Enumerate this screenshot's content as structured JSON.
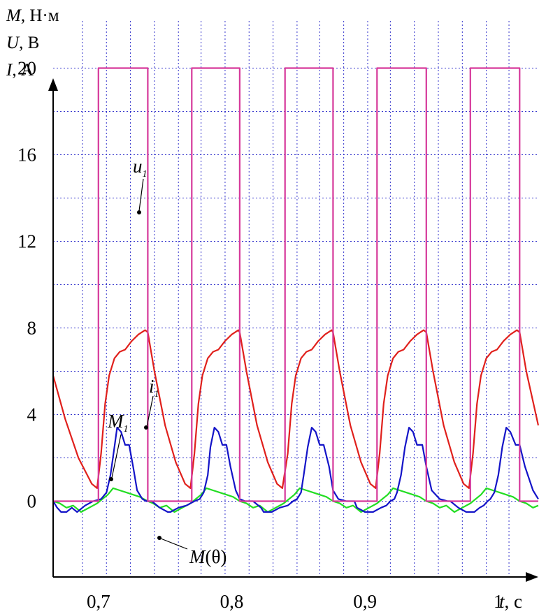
{
  "chart_data": {
    "type": "line",
    "y_axis_labels": [
      {
        "sym": "M",
        "unit": ", Н·м"
      },
      {
        "sym": "U",
        "unit": ", В"
      },
      {
        "sym": "I",
        "unit": ", А"
      }
    ],
    "x_axis_label": {
      "sym": "t",
      "unit": ", с"
    },
    "xlim": [
      0.666,
      1.03
    ],
    "ylim": [
      -3.5,
      22.5
    ],
    "x_grid": [
      0.688,
      0.706,
      0.724,
      0.742,
      0.76,
      0.777,
      0.795,
      0.813,
      0.831,
      0.849,
      0.866,
      0.884,
      0.902,
      0.919,
      0.937,
      0.955,
      0.973,
      0.991,
      1.008
    ],
    "y_grid": [
      0,
      2,
      4,
      6,
      8,
      10,
      12,
      14,
      16,
      18,
      20
    ],
    "x_ticks": [
      {
        "v": 0.7,
        "label": "0,7"
      },
      {
        "v": 0.8,
        "label": "0,8"
      },
      {
        "v": 0.9,
        "label": "0,9"
      },
      {
        "v": 1.0,
        "label": "1"
      }
    ],
    "y_ticks": [
      {
        "v": 0,
        "label": "0"
      },
      {
        "v": 4,
        "label": "4"
      },
      {
        "v": 8,
        "label": "8"
      },
      {
        "v": 12,
        "label": "12"
      },
      {
        "v": 16,
        "label": "16"
      },
      {
        "v": 20,
        "label": "20"
      }
    ],
    "grid": true,
    "colors": {
      "u1": "#d6399b",
      "i1": "#e0201c",
      "M1": "#1414c8",
      "Mtheta": "#22dd22",
      "grid": "#3333cc",
      "axis": "#000000"
    },
    "series": [
      {
        "id": "u1",
        "label": {
          "sym": "u",
          "sub": "1"
        },
        "x": [
          0.666,
          0.7,
          0.7,
          0.737,
          0.737,
          0.77,
          0.77,
          0.806,
          0.806,
          0.84,
          0.84,
          0.876,
          0.876,
          0.909,
          0.909,
          0.946,
          0.946,
          0.979,
          0.979,
          1.016,
          1.016,
          1.03
        ],
        "y": [
          0,
          0,
          20,
          20,
          0,
          0,
          20,
          20,
          0,
          0,
          20,
          20,
          0,
          0,
          20,
          20,
          0,
          0,
          20,
          20,
          0,
          0
        ]
      },
      {
        "id": "i1",
        "label": {
          "sym": "i",
          "sub": "1"
        },
        "x": [
          0.666,
          0.675,
          0.685,
          0.695,
          0.699,
          0.702,
          0.705,
          0.708,
          0.712,
          0.716,
          0.72,
          0.725,
          0.73,
          0.735,
          0.737,
          0.742,
          0.75,
          0.758,
          0.765,
          0.769,
          0.772,
          0.775,
          0.778,
          0.782,
          0.786,
          0.79,
          0.795,
          0.8,
          0.805,
          0.806,
          0.811,
          0.819,
          0.827,
          0.834,
          0.838,
          0.842,
          0.845,
          0.848,
          0.852,
          0.856,
          0.86,
          0.865,
          0.87,
          0.875,
          0.876,
          0.881,
          0.889,
          0.897,
          0.904,
          0.908,
          0.911,
          0.914,
          0.917,
          0.921,
          0.925,
          0.929,
          0.934,
          0.939,
          0.944,
          0.946,
          0.951,
          0.959,
          0.967,
          0.974,
          0.978,
          0.981,
          0.984,
          0.987,
          0.991,
          0.995,
          0.999,
          1.004,
          1.009,
          1.014,
          1.016,
          1.021,
          1.03
        ],
        "y": [
          5.8,
          3.8,
          2.0,
          0.8,
          0.6,
          2.2,
          4.5,
          5.8,
          6.6,
          6.9,
          7.0,
          7.4,
          7.7,
          7.9,
          7.8,
          6.0,
          3.5,
          1.8,
          0.8,
          0.6,
          2.2,
          4.5,
          5.8,
          6.6,
          6.9,
          7.0,
          7.4,
          7.7,
          7.9,
          7.8,
          6.0,
          3.5,
          1.8,
          0.8,
          0.6,
          2.2,
          4.5,
          5.8,
          6.6,
          6.9,
          7.0,
          7.4,
          7.7,
          7.9,
          7.8,
          6.0,
          3.5,
          1.8,
          0.8,
          0.6,
          2.2,
          4.5,
          5.8,
          6.6,
          6.9,
          7.0,
          7.4,
          7.7,
          7.9,
          7.8,
          6.0,
          3.5,
          1.8,
          0.8,
          0.6,
          2.2,
          4.5,
          5.8,
          6.6,
          6.9,
          7.0,
          7.4,
          7.7,
          7.9,
          7.8,
          6.0,
          3.5
        ]
      },
      {
        "id": "M1",
        "label": {
          "sym": "M",
          "sub": "1"
        },
        "x": [
          0.666,
          0.669,
          0.672,
          0.676,
          0.68,
          0.684,
          0.69,
          0.696,
          0.702,
          0.706,
          0.709,
          0.712,
          0.714,
          0.717,
          0.72,
          0.723,
          0.726,
          0.729,
          0.733,
          0.736,
          0.74,
          0.746,
          0.752,
          0.754,
          0.76,
          0.766,
          0.772,
          0.776,
          0.779,
          0.782,
          0.784,
          0.787,
          0.79,
          0.793,
          0.796,
          0.799,
          0.803,
          0.806,
          0.81,
          0.816,
          0.822,
          0.824,
          0.83,
          0.836,
          0.842,
          0.846,
          0.849,
          0.852,
          0.854,
          0.857,
          0.86,
          0.863,
          0.866,
          0.869,
          0.873,
          0.876,
          0.88,
          0.886,
          0.892,
          0.894,
          0.9,
          0.906,
          0.912,
          0.916,
          0.919,
          0.922,
          0.924,
          0.927,
          0.93,
          0.933,
          0.936,
          0.939,
          0.943,
          0.946,
          0.95,
          0.956,
          0.962,
          0.964,
          0.97,
          0.976,
          0.982,
          0.986,
          0.989,
          0.992,
          0.994,
          0.997,
          1.0,
          1.003,
          1.006,
          1.009,
          1.013,
          1.016,
          1.02,
          1.026,
          1.03
        ],
        "y": [
          0,
          -0.3,
          -0.5,
          -0.5,
          -0.3,
          -0.5,
          -0.2,
          0,
          0.1,
          0.4,
          1.2,
          2.5,
          3.4,
          3.2,
          2.6,
          2.6,
          1.6,
          0.5,
          0.1,
          0,
          0,
          -0.3,
          -0.5,
          -0.5,
          -0.3,
          -0.2,
          0,
          0.1,
          0.4,
          1.2,
          2.5,
          3.4,
          3.2,
          2.6,
          2.6,
          1.6,
          0.5,
          0.1,
          0,
          0,
          -0.3,
          -0.5,
          -0.5,
          -0.3,
          -0.2,
          0,
          0.1,
          0.4,
          1.2,
          2.5,
          3.4,
          3.2,
          2.6,
          2.6,
          1.6,
          0.5,
          0.1,
          0,
          0,
          -0.3,
          -0.5,
          -0.5,
          -0.3,
          -0.2,
          0,
          0.1,
          0.4,
          1.2,
          2.5,
          3.4,
          3.2,
          2.6,
          2.6,
          1.6,
          0.5,
          0.1,
          0,
          0,
          -0.3,
          -0.5,
          -0.5,
          -0.3,
          -0.2,
          0,
          0.1,
          0.4,
          1.2,
          2.5,
          3.4,
          3.2,
          2.6,
          2.6,
          1.6,
          0.5,
          0.1
        ]
      },
      {
        "id": "Mtheta",
        "label": {
          "text": "M(θ)"
        },
        "x": [
          0.666,
          0.671,
          0.676,
          0.681,
          0.687,
          0.693,
          0.699,
          0.703,
          0.707,
          0.711,
          0.716,
          0.721,
          0.726,
          0.731,
          0.737,
          0.741,
          0.746,
          0.751,
          0.757,
          0.763,
          0.769,
          0.773,
          0.777,
          0.781,
          0.786,
          0.791,
          0.796,
          0.801,
          0.806,
          0.811,
          0.816,
          0.821,
          0.827,
          0.833,
          0.839,
          0.843,
          0.847,
          0.851,
          0.856,
          0.861,
          0.866,
          0.871,
          0.876,
          0.881,
          0.886,
          0.891,
          0.897,
          0.903,
          0.909,
          0.913,
          0.917,
          0.921,
          0.926,
          0.931,
          0.936,
          0.941,
          0.946,
          0.951,
          0.956,
          0.961,
          0.967,
          0.973,
          0.979,
          0.983,
          0.987,
          0.991,
          0.996,
          1.001,
          1.006,
          1.011,
          1.016,
          1.021,
          1.026,
          1.03
        ],
        "y": [
          0,
          -0.1,
          -0.3,
          -0.2,
          -0.5,
          -0.3,
          -0.1,
          0.1,
          0.3,
          0.6,
          0.5,
          0.4,
          0.3,
          0.2,
          0,
          -0.1,
          -0.3,
          -0.2,
          -0.5,
          -0.3,
          -0.1,
          0.1,
          0.3,
          0.6,
          0.5,
          0.4,
          0.3,
          0.2,
          0,
          -0.1,
          -0.3,
          -0.2,
          -0.5,
          -0.3,
          -0.1,
          0.1,
          0.3,
          0.6,
          0.5,
          0.4,
          0.3,
          0.2,
          0,
          -0.1,
          -0.3,
          -0.2,
          -0.5,
          -0.3,
          -0.1,
          0.1,
          0.3,
          0.6,
          0.5,
          0.4,
          0.3,
          0.2,
          0,
          -0.1,
          -0.3,
          -0.2,
          -0.5,
          -0.3,
          -0.1,
          0.1,
          0.3,
          0.6,
          0.5,
          0.4,
          0.3,
          0.2,
          0,
          -0.1,
          -0.3,
          -0.2
        ]
      }
    ]
  }
}
